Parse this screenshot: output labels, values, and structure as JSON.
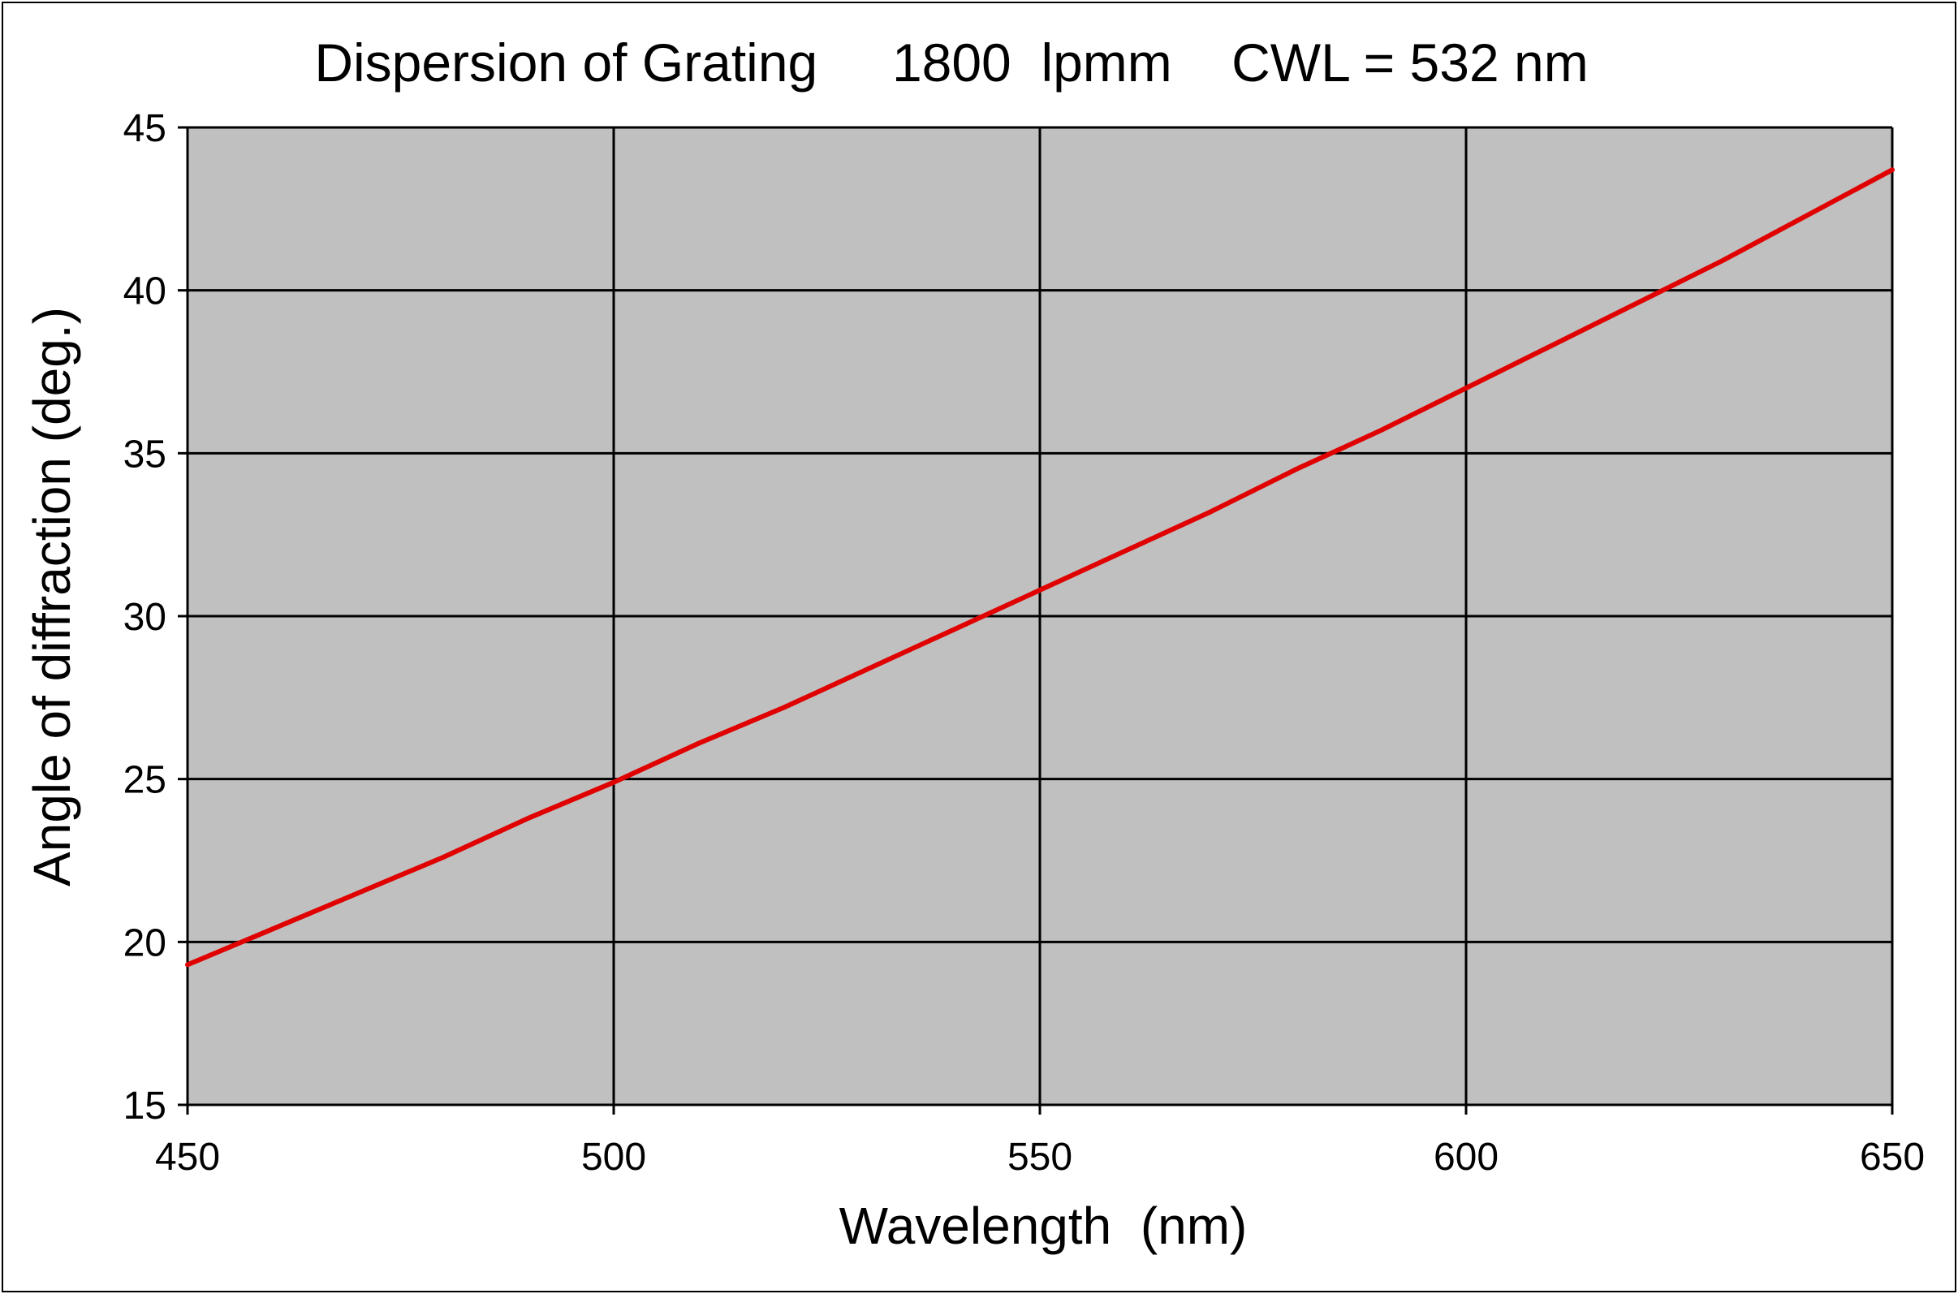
{
  "chart_data": {
    "type": "line",
    "title": "Dispersion of Grating     1800  lpmm    CWL = 532 nm",
    "xlabel": "Wavelength  (nm)",
    "ylabel": "Angle of diffraction (deg.)",
    "xlim": [
      450,
      650
    ],
    "ylim": [
      15,
      45
    ],
    "x_ticks": [
      450,
      500,
      550,
      600,
      650
    ],
    "y_ticks": [
      15,
      20,
      25,
      30,
      35,
      40,
      45
    ],
    "x_tick_labels": [
      "450",
      "500",
      "550",
      "600",
      "650"
    ],
    "y_tick_labels": [
      "15",
      "20",
      "25",
      "30",
      "35",
      "40",
      "45"
    ],
    "grid": true,
    "plot_background": "#c0c0c0",
    "gridline_color": "#000000",
    "series": [
      {
        "color": "#e00000",
        "x": [
          450,
          460,
          470,
          480,
          490,
          500,
          510,
          520,
          530,
          540,
          550,
          560,
          570,
          580,
          590,
          600,
          610,
          620,
          630,
          640,
          650
        ],
        "y": [
          19.3,
          20.4,
          21.5,
          22.6,
          23.8,
          24.9,
          26.1,
          27.2,
          28.4,
          29.6,
          30.8,
          32.0,
          33.2,
          34.5,
          35.7,
          37.0,
          38.3,
          39.6,
          40.9,
          42.3,
          43.7
        ]
      }
    ]
  }
}
